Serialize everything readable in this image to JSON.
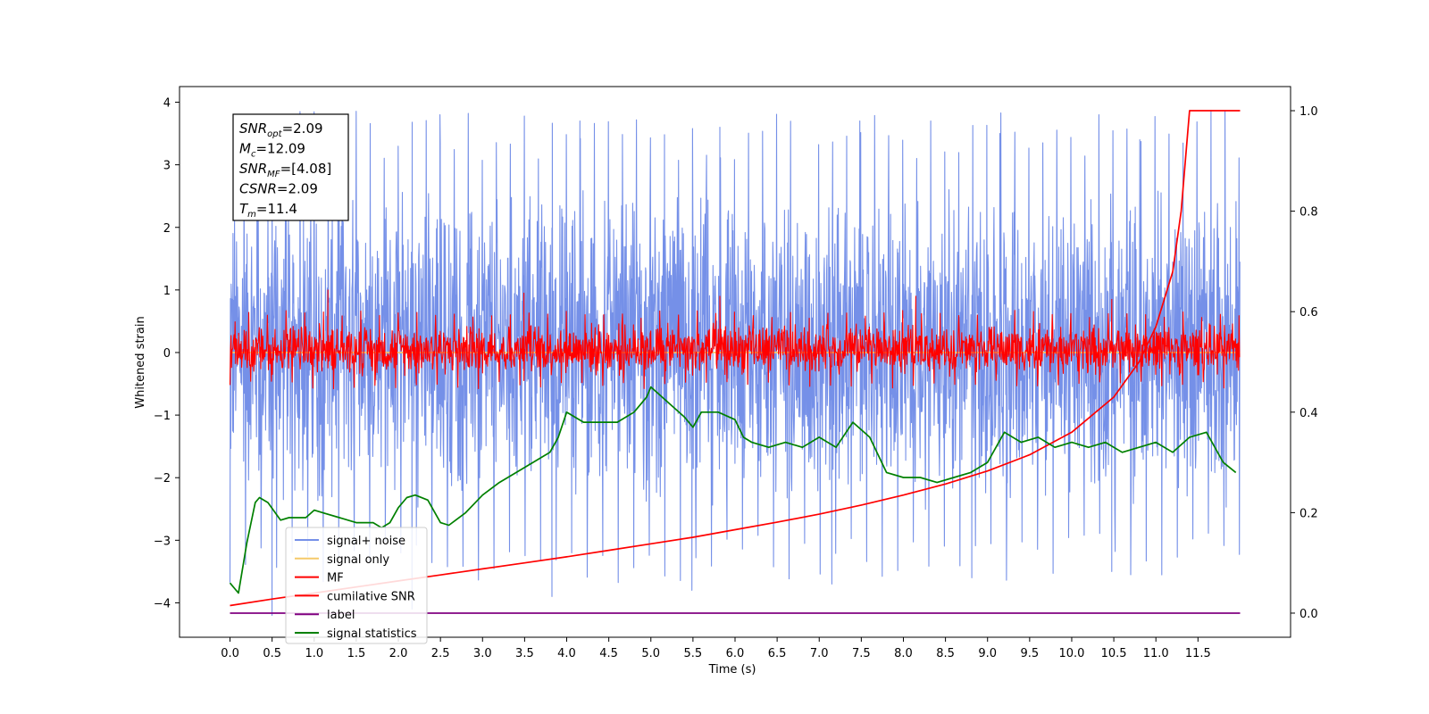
{
  "chart_data": {
    "type": "line",
    "xlabel": "Time (s)",
    "ylabel": "Whitened strain",
    "xlim": [
      -0.6,
      12.6
    ],
    "ylim": [
      -4.55,
      4.25
    ],
    "ylim_right": [
      -0.048,
      1.048
    ],
    "x_ticks": [
      0.0,
      0.5,
      1.0,
      1.5,
      2.0,
      2.5,
      3.0,
      3.5,
      4.0,
      4.5,
      5.0,
      5.5,
      6.0,
      6.5,
      7.0,
      7.5,
      8.0,
      8.5,
      9.0,
      9.5,
      10.0,
      10.5,
      11.0,
      11.5
    ],
    "x_tick_labels": [
      "0.0",
      "0.5",
      "1.0",
      "1.5",
      "2.0",
      "2.5",
      "3.0",
      "3.5",
      "4.0",
      "4.5",
      "5.0",
      "5.5",
      "6.0",
      "6.5",
      "7.0",
      "7.5",
      "8.0",
      "8.5",
      "9.0",
      "9.5",
      "10.0",
      "10.5",
      "11.0",
      "11.5"
    ],
    "y_ticks": [
      -4,
      -3,
      -2,
      -1,
      0,
      1,
      2,
      3,
      4
    ],
    "y_tick_labels": [
      "−4",
      "−3",
      "−2",
      "−1",
      "0",
      "1",
      "2",
      "3",
      "4"
    ],
    "y_right_ticks": [
      0.0,
      0.2,
      0.4,
      0.6,
      0.8,
      1.0
    ],
    "y_right_tick_labels": [
      "0.0",
      "0.2",
      "0.4",
      "0.6",
      "0.8",
      "1.0"
    ],
    "annotation": {
      "lines": [
        {
          "main": "SNR",
          "sub": "opt",
          "rest": "=2.09"
        },
        {
          "main": "M",
          "sub": "c",
          "rest": "=12.09"
        },
        {
          "main": "SNR",
          "sub": "MF",
          "rest": "=[4.08]"
        },
        {
          "main": "CSNR",
          "sub": "",
          "rest": "=2.09"
        },
        {
          "main": "T",
          "sub": "m",
          "rest": "=11.4"
        }
      ]
    },
    "series": [
      {
        "name": "signal+ noise",
        "color": "#7590e8",
        "axis": "left",
        "kind": "noise",
        "x_range": [
          0.0,
          12.0
        ],
        "envelope": [
          -2.6,
          2.8
        ],
        "peaks_high": [
          3.85,
          3.8,
          3.7,
          3.6,
          3.7,
          3.5,
          3.4
        ],
        "peaks_low": [
          -4.2,
          -4.1,
          -3.9,
          -3.8,
          -3.7,
          -3.6,
          -3.5
        ]
      },
      {
        "name": "signal only",
        "color": "#f5c96a",
        "axis": "left",
        "kind": "flat",
        "x_range": [
          0.0,
          12.0
        ],
        "values": [
          0.0
        ]
      },
      {
        "name": "MF",
        "color": "#ff0000",
        "axis": "left",
        "kind": "noise",
        "x_range": [
          0.0,
          12.0
        ],
        "envelope": [
          -0.4,
          0.5
        ],
        "peaks_high": [
          1.0,
          0.95,
          0.9,
          0.9,
          0.85
        ],
        "peaks_low": [
          -0.45
        ]
      },
      {
        "name": "cumilative SNR",
        "color": "#ff0000",
        "axis": "right",
        "x": [
          0.0,
          0.5,
          1.0,
          1.5,
          2.0,
          2.5,
          3.0,
          3.5,
          4.0,
          4.5,
          5.0,
          5.5,
          6.0,
          6.5,
          7.0,
          7.5,
          8.0,
          8.5,
          9.0,
          9.5,
          10.0,
          10.5,
          10.8,
          11.0,
          11.2,
          11.3,
          11.38,
          11.4,
          12.0
        ],
        "values": [
          0.015,
          0.028,
          0.04,
          0.052,
          0.064,
          0.076,
          0.088,
          0.1,
          0.112,
          0.125,
          0.138,
          0.151,
          0.166,
          0.181,
          0.197,
          0.215,
          0.235,
          0.257,
          0.283,
          0.315,
          0.36,
          0.43,
          0.5,
          0.57,
          0.68,
          0.8,
          0.96,
          1.0,
          1.0
        ]
      },
      {
        "name": "label",
        "color": "#800080",
        "axis": "right",
        "x": [
          0.0,
          12.0
        ],
        "values": [
          0.0,
          0.0
        ]
      },
      {
        "name": "signal statistics",
        "color": "#008000",
        "axis": "right",
        "x": [
          0.0,
          0.1,
          0.2,
          0.3,
          0.35,
          0.45,
          0.6,
          0.7,
          0.9,
          1.0,
          1.1,
          1.3,
          1.5,
          1.7,
          1.8,
          1.9,
          2.0,
          2.1,
          2.2,
          2.35,
          2.5,
          2.6,
          2.8,
          3.0,
          3.2,
          3.4,
          3.6,
          3.8,
          3.9,
          4.0,
          4.2,
          4.4,
          4.6,
          4.8,
          4.95,
          5.0,
          5.2,
          5.4,
          5.5,
          5.6,
          5.8,
          6.0,
          6.1,
          6.2,
          6.4,
          6.6,
          6.8,
          7.0,
          7.2,
          7.4,
          7.6,
          7.8,
          8.0,
          8.2,
          8.4,
          8.6,
          8.8,
          9.0,
          9.2,
          9.4,
          9.6,
          9.8,
          10.0,
          10.2,
          10.4,
          10.6,
          10.8,
          11.0,
          11.2,
          11.4,
          11.6,
          11.8,
          11.95
        ],
        "values": [
          0.06,
          0.04,
          0.14,
          0.22,
          0.23,
          0.22,
          0.185,
          0.19,
          0.19,
          0.205,
          0.2,
          0.19,
          0.18,
          0.18,
          0.17,
          0.18,
          0.21,
          0.23,
          0.235,
          0.225,
          0.18,
          0.175,
          0.2,
          0.235,
          0.26,
          0.28,
          0.3,
          0.32,
          0.35,
          0.4,
          0.38,
          0.38,
          0.38,
          0.4,
          0.43,
          0.45,
          0.42,
          0.39,
          0.37,
          0.4,
          0.4,
          0.385,
          0.35,
          0.34,
          0.33,
          0.34,
          0.33,
          0.35,
          0.33,
          0.38,
          0.35,
          0.28,
          0.27,
          0.27,
          0.26,
          0.27,
          0.28,
          0.3,
          0.36,
          0.34,
          0.35,
          0.33,
          0.34,
          0.33,
          0.34,
          0.32,
          0.33,
          0.34,
          0.32,
          0.35,
          0.36,
          0.3,
          0.28
        ]
      }
    ],
    "legend": "lower-left",
    "grid": false
  }
}
